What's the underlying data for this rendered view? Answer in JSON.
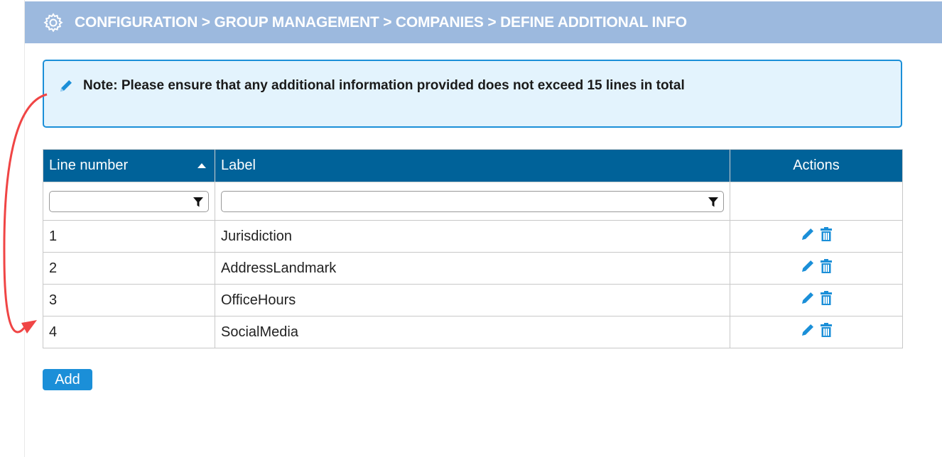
{
  "header": {
    "title": "CONFIGURATION > GROUP MANAGEMENT > COMPANIES > DEFINE ADDITIONAL INFO",
    "icon": "gear-icon"
  },
  "note": {
    "text": "Note: Please ensure that any additional information provided does not exceed 15 lines in total",
    "icon": "pencil-icon"
  },
  "table": {
    "columns": [
      "Line number",
      "Label",
      "Actions"
    ],
    "sort": "Line number ascending",
    "filters": {
      "line_number": "",
      "label": ""
    },
    "rows": [
      {
        "line": "1",
        "label": "Jurisdiction"
      },
      {
        "line": "2",
        "label": "AddressLandmark"
      },
      {
        "line": "3",
        "label": "OfficeHours"
      },
      {
        "line": "4",
        "label": "SocialMedia"
      }
    ]
  },
  "buttons": {
    "add_label": "Add"
  },
  "colors": {
    "header_bg": "#9cb9de",
    "table_header_bg": "#006299",
    "accent": "#1b8fd8",
    "note_bg": "#e3f3fd",
    "annotation": "#f04545"
  }
}
